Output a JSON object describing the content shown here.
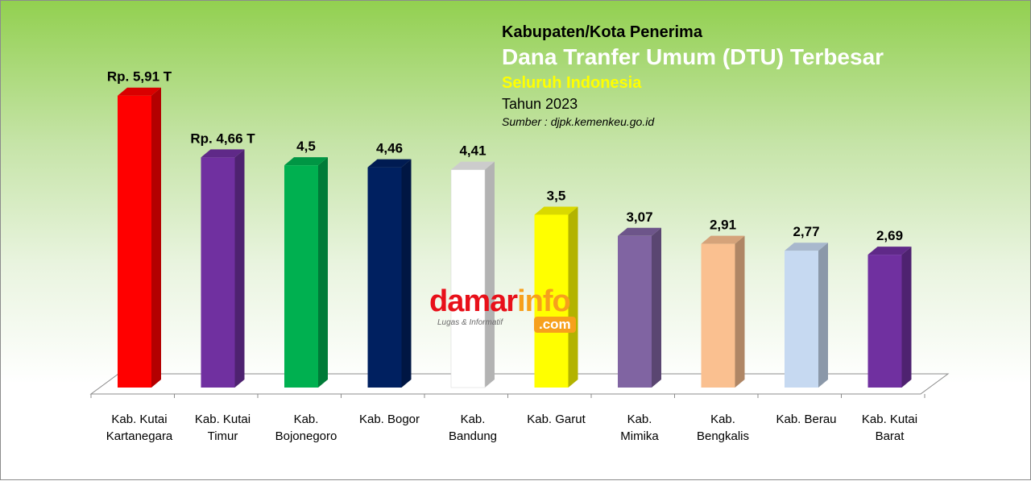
{
  "title": {
    "line1": "Kabupaten/Kota Penerima",
    "line2": "Dana Tranfer Umum (DTU) Terbesar",
    "line3": "Seluruh Indonesia",
    "line4": "Tahun 2023",
    "source": "Sumber : djpk.kemenkeu.go.id"
  },
  "watermark": {
    "part1": "damar",
    "part2": "info",
    "tagline": "Lugas & Informatif",
    "suffix": ".com"
  },
  "chart_data": {
    "type": "bar",
    "categories": [
      [
        "Kab. Kutai",
        "Kartanegara"
      ],
      [
        "Kab. Kutai",
        "Timur"
      ],
      [
        "Kab.",
        "Bojonegoro"
      ],
      [
        "Kab. Bogor"
      ],
      [
        "Kab.",
        "Bandung"
      ],
      [
        "Kab. Garut"
      ],
      [
        "Kab.",
        "Mimika"
      ],
      [
        "Kab.",
        "Bengkalis"
      ],
      [
        "Kab. Berau"
      ],
      [
        "Kab. Kutai",
        "Barat"
      ]
    ],
    "values": [
      5.91,
      4.66,
      4.5,
      4.46,
      4.41,
      3.5,
      3.07,
      2.91,
      2.77,
      2.69
    ],
    "data_labels": [
      "Rp. 5,91 T",
      "Rp. 4,66 T",
      "4,5",
      "4,46",
      "4,41",
      "3,5",
      "3,07",
      "2,91",
      "2,77",
      "2,69"
    ],
    "colors": [
      "#ff0000",
      "#7030a0",
      "#00b050",
      "#002060",
      "#ffffff",
      "#ffff00",
      "#8064a2",
      "#fac090",
      "#c6d9f1",
      "#7030a0"
    ],
    "ylim": [
      0,
      6.2
    ],
    "grid": false,
    "legend": "none"
  }
}
